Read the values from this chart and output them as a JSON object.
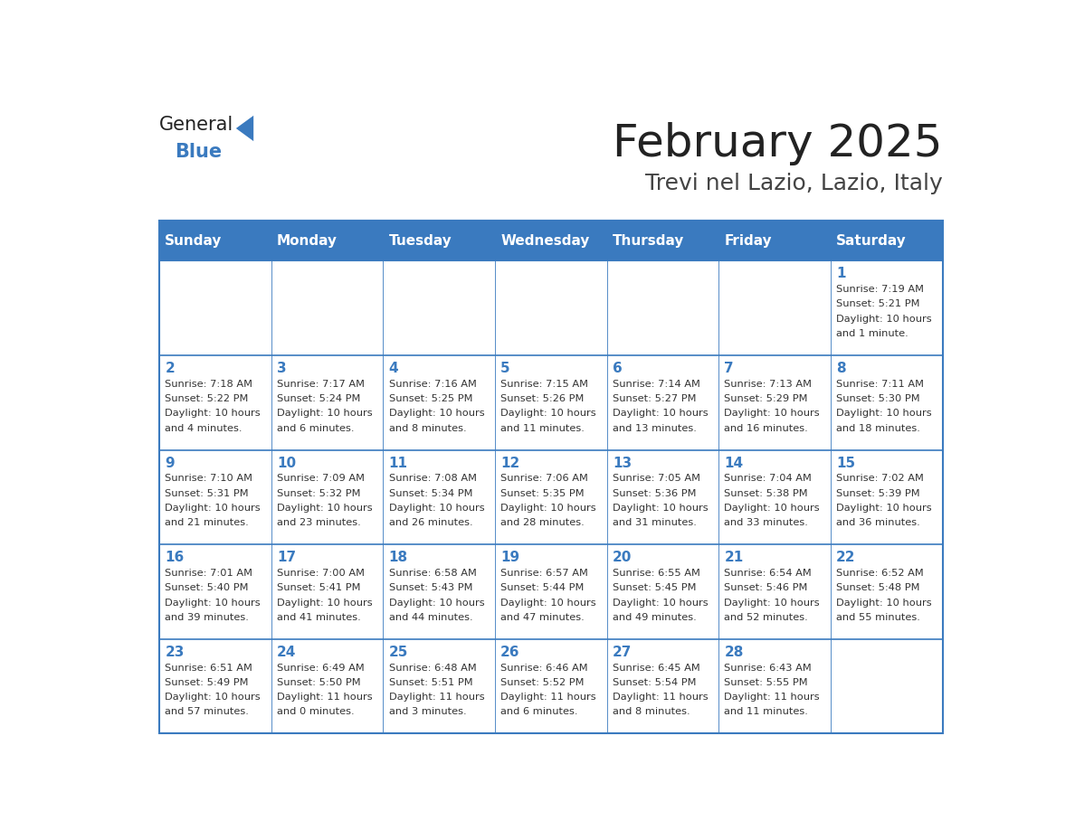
{
  "title": "February 2025",
  "subtitle": "Trevi nel Lazio, Lazio, Italy",
  "header_bg": "#3a7abf",
  "header_text": "#ffffff",
  "border_color": "#3a7abf",
  "day_names": [
    "Sunday",
    "Monday",
    "Tuesday",
    "Wednesday",
    "Thursday",
    "Friday",
    "Saturday"
  ],
  "title_color": "#222222",
  "subtitle_color": "#444444",
  "days": [
    {
      "day": 1,
      "col": 6,
      "row": 0,
      "sunrise": "7:19 AM",
      "sunset": "5:21 PM",
      "daylight": "10 hours and 1 minute."
    },
    {
      "day": 2,
      "col": 0,
      "row": 1,
      "sunrise": "7:18 AM",
      "sunset": "5:22 PM",
      "daylight": "10 hours and 4 minutes."
    },
    {
      "day": 3,
      "col": 1,
      "row": 1,
      "sunrise": "7:17 AM",
      "sunset": "5:24 PM",
      "daylight": "10 hours and 6 minutes."
    },
    {
      "day": 4,
      "col": 2,
      "row": 1,
      "sunrise": "7:16 AM",
      "sunset": "5:25 PM",
      "daylight": "10 hours and 8 minutes."
    },
    {
      "day": 5,
      "col": 3,
      "row": 1,
      "sunrise": "7:15 AM",
      "sunset": "5:26 PM",
      "daylight": "10 hours and 11 minutes."
    },
    {
      "day": 6,
      "col": 4,
      "row": 1,
      "sunrise": "7:14 AM",
      "sunset": "5:27 PM",
      "daylight": "10 hours and 13 minutes."
    },
    {
      "day": 7,
      "col": 5,
      "row": 1,
      "sunrise": "7:13 AM",
      "sunset": "5:29 PM",
      "daylight": "10 hours and 16 minutes."
    },
    {
      "day": 8,
      "col": 6,
      "row": 1,
      "sunrise": "7:11 AM",
      "sunset": "5:30 PM",
      "daylight": "10 hours and 18 minutes."
    },
    {
      "day": 9,
      "col": 0,
      "row": 2,
      "sunrise": "7:10 AM",
      "sunset": "5:31 PM",
      "daylight": "10 hours and 21 minutes."
    },
    {
      "day": 10,
      "col": 1,
      "row": 2,
      "sunrise": "7:09 AM",
      "sunset": "5:32 PM",
      "daylight": "10 hours and 23 minutes."
    },
    {
      "day": 11,
      "col": 2,
      "row": 2,
      "sunrise": "7:08 AM",
      "sunset": "5:34 PM",
      "daylight": "10 hours and 26 minutes."
    },
    {
      "day": 12,
      "col": 3,
      "row": 2,
      "sunrise": "7:06 AM",
      "sunset": "5:35 PM",
      "daylight": "10 hours and 28 minutes."
    },
    {
      "day": 13,
      "col": 4,
      "row": 2,
      "sunrise": "7:05 AM",
      "sunset": "5:36 PM",
      "daylight": "10 hours and 31 minutes."
    },
    {
      "day": 14,
      "col": 5,
      "row": 2,
      "sunrise": "7:04 AM",
      "sunset": "5:38 PM",
      "daylight": "10 hours and 33 minutes."
    },
    {
      "day": 15,
      "col": 6,
      "row": 2,
      "sunrise": "7:02 AM",
      "sunset": "5:39 PM",
      "daylight": "10 hours and 36 minutes."
    },
    {
      "day": 16,
      "col": 0,
      "row": 3,
      "sunrise": "7:01 AM",
      "sunset": "5:40 PM",
      "daylight": "10 hours and 39 minutes."
    },
    {
      "day": 17,
      "col": 1,
      "row": 3,
      "sunrise": "7:00 AM",
      "sunset": "5:41 PM",
      "daylight": "10 hours and 41 minutes."
    },
    {
      "day": 18,
      "col": 2,
      "row": 3,
      "sunrise": "6:58 AM",
      "sunset": "5:43 PM",
      "daylight": "10 hours and 44 minutes."
    },
    {
      "day": 19,
      "col": 3,
      "row": 3,
      "sunrise": "6:57 AM",
      "sunset": "5:44 PM",
      "daylight": "10 hours and 47 minutes."
    },
    {
      "day": 20,
      "col": 4,
      "row": 3,
      "sunrise": "6:55 AM",
      "sunset": "5:45 PM",
      "daylight": "10 hours and 49 minutes."
    },
    {
      "day": 21,
      "col": 5,
      "row": 3,
      "sunrise": "6:54 AM",
      "sunset": "5:46 PM",
      "daylight": "10 hours and 52 minutes."
    },
    {
      "day": 22,
      "col": 6,
      "row": 3,
      "sunrise": "6:52 AM",
      "sunset": "5:48 PM",
      "daylight": "10 hours and 55 minutes."
    },
    {
      "day": 23,
      "col": 0,
      "row": 4,
      "sunrise": "6:51 AM",
      "sunset": "5:49 PM",
      "daylight": "10 hours and 57 minutes."
    },
    {
      "day": 24,
      "col": 1,
      "row": 4,
      "sunrise": "6:49 AM",
      "sunset": "5:50 PM",
      "daylight": "11 hours and 0 minutes."
    },
    {
      "day": 25,
      "col": 2,
      "row": 4,
      "sunrise": "6:48 AM",
      "sunset": "5:51 PM",
      "daylight": "11 hours and 3 minutes."
    },
    {
      "day": 26,
      "col": 3,
      "row": 4,
      "sunrise": "6:46 AM",
      "sunset": "5:52 PM",
      "daylight": "11 hours and 6 minutes."
    },
    {
      "day": 27,
      "col": 4,
      "row": 4,
      "sunrise": "6:45 AM",
      "sunset": "5:54 PM",
      "daylight": "11 hours and 8 minutes."
    },
    {
      "day": 28,
      "col": 5,
      "row": 4,
      "sunrise": "6:43 AM",
      "sunset": "5:55 PM",
      "daylight": "11 hours and 11 minutes."
    }
  ]
}
